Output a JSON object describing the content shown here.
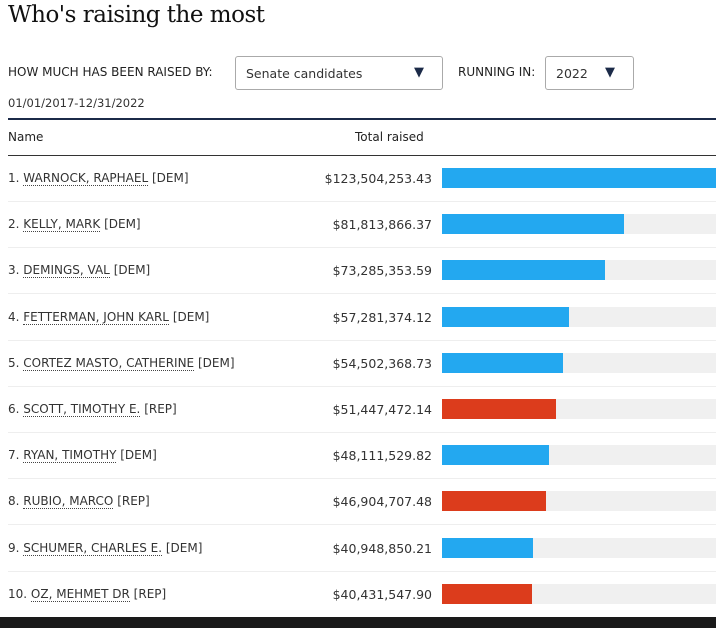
{
  "title": "Who's raising the most",
  "filters": {
    "raised_by_label": "HOW MUCH HAS BEEN RAISED BY:",
    "raised_by_value": "Senate candidates",
    "running_in_label": "RUNNING IN:",
    "running_in_value": "2022"
  },
  "date_range": "01/01/2017-12/31/2022",
  "colors": {
    "DEM": "#23a8f0",
    "REP": "#dc3c1c"
  },
  "chart_data": {
    "type": "bar",
    "columns": {
      "name": "Name",
      "total": "Total raised"
    },
    "rows": [
      {
        "rank": "1.",
        "name": "WARNOCK, RAPHAEL",
        "party": "[DEM]",
        "p": "DEM",
        "total": "$123,504,253.43",
        "value": 123504253.43
      },
      {
        "rank": "2.",
        "name": "KELLY, MARK",
        "party": "[DEM]",
        "p": "DEM",
        "total": "$81,813,866.37",
        "value": 81813866.37
      },
      {
        "rank": "3.",
        "name": "DEMINGS, VAL",
        "party": "[DEM]",
        "p": "DEM",
        "total": "$73,285,353.59",
        "value": 73285353.59
      },
      {
        "rank": "4.",
        "name": "FETTERMAN, JOHN KARL",
        "party": "[DEM]",
        "p": "DEM",
        "total": "$57,281,374.12",
        "value": 57281374.12
      },
      {
        "rank": "5.",
        "name": "CORTEZ MASTO, CATHERINE",
        "party": "[DEM]",
        "p": "DEM",
        "total": "$54,502,368.73",
        "value": 54502368.73
      },
      {
        "rank": "6.",
        "name": "SCOTT, TIMOTHY E.",
        "party": "[REP]",
        "p": "REP",
        "total": "$51,447,472.14",
        "value": 51447472.14
      },
      {
        "rank": "7.",
        "name": "RYAN, TIMOTHY",
        "party": "[DEM]",
        "p": "DEM",
        "total": "$48,111,529.82",
        "value": 48111529.82
      },
      {
        "rank": "8.",
        "name": "RUBIO, MARCO",
        "party": "[REP]",
        "p": "REP",
        "total": "$46,904,707.48",
        "value": 46904707.48
      },
      {
        "rank": "9.",
        "name": "SCHUMER, CHARLES E.",
        "party": "[DEM]",
        "p": "DEM",
        "total": "$40,948,850.21",
        "value": 40948850.21
      },
      {
        "rank": "10.",
        "name": "OZ, MEHMET DR",
        "party": "[REP]",
        "p": "REP",
        "total": "$40,431,547.90",
        "value": 40431547.9
      }
    ]
  }
}
